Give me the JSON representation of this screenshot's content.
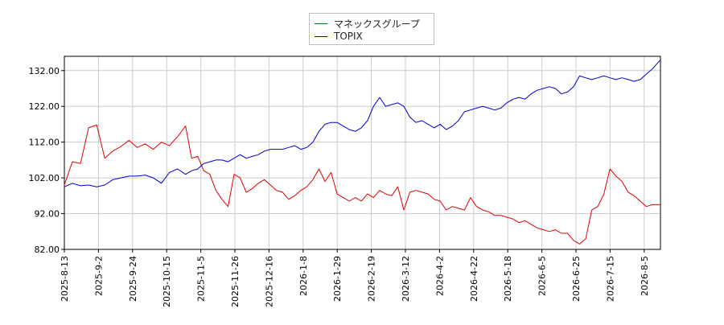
{
  "chart_data": {
    "type": "line",
    "title": "",
    "xlabel": "",
    "ylabel": "",
    "ylim": [
      82,
      136
    ],
    "y_ticks": [
      "82.00",
      "92.00",
      "102.00",
      "112.00",
      "122.00",
      "132.00"
    ],
    "x_tick_labels": [
      "2025-8-13",
      "2025-9-2",
      "2025-9-24",
      "2025-10-15",
      "2025-11-5",
      "2025-11-26",
      "2025-12-16",
      "2026-1-8",
      "2026-1-29",
      "2026-2-19",
      "2026-3-12",
      "2026-4-2",
      "2026-4-22",
      "2026-5-18",
      "2026-6-5",
      "2026-6-25",
      "2026-7-15",
      "2026-8-5"
    ],
    "grid": true,
    "legend_position": "top-center",
    "series": [
      {
        "name": "マネックスグループ",
        "color": "#dd0000",
        "points": [
          [
            0,
            100.0
          ],
          [
            4,
            106.5
          ],
          [
            8,
            106.0
          ],
          [
            12,
            116.0
          ],
          [
            16,
            116.8
          ],
          [
            20,
            107.5
          ],
          [
            24,
            109.5
          ],
          [
            28,
            110.8
          ],
          [
            32,
            112.5
          ],
          [
            36,
            110.5
          ],
          [
            40,
            111.5
          ],
          [
            44,
            110.0
          ],
          [
            48,
            112.0
          ],
          [
            52,
            111.0
          ],
          [
            56,
            113.5
          ],
          [
            60,
            116.5
          ],
          [
            63,
            107.5
          ],
          [
            66,
            108.0
          ],
          [
            69,
            104.0
          ],
          [
            72,
            103.0
          ],
          [
            75,
            98.5
          ],
          [
            78,
            96.0
          ],
          [
            81,
            94.0
          ],
          [
            84,
            103.0
          ],
          [
            87,
            102.0
          ],
          [
            90,
            98.0
          ],
          [
            93,
            99.0
          ],
          [
            96,
            100.5
          ],
          [
            99,
            101.5
          ],
          [
            102,
            100.0
          ],
          [
            105,
            98.5
          ],
          [
            108,
            98.0
          ],
          [
            111,
            96.0
          ],
          [
            114,
            97.0
          ],
          [
            117,
            98.5
          ],
          [
            120,
            99.5
          ],
          [
            123,
            101.5
          ],
          [
            126,
            104.5
          ],
          [
            129,
            101.0
          ],
          [
            132,
            103.5
          ],
          [
            135,
            97.5
          ],
          [
            138,
            96.5
          ],
          [
            141,
            95.5
          ],
          [
            144,
            96.5
          ],
          [
            147,
            95.5
          ],
          [
            150,
            97.5
          ],
          [
            153,
            96.5
          ],
          [
            156,
            98.5
          ],
          [
            159,
            97.5
          ],
          [
            162,
            97.0
          ],
          [
            165,
            99.5
          ],
          [
            168,
            93.0
          ],
          [
            171,
            98.0
          ],
          [
            174,
            98.5
          ],
          [
            177,
            98.0
          ],
          [
            180,
            97.5
          ],
          [
            183,
            96.0
          ],
          [
            186,
            95.5
          ],
          [
            189,
            93.0
          ],
          [
            192,
            94.0
          ],
          [
            195,
            93.5
          ],
          [
            198,
            93.0
          ],
          [
            201,
            96.5
          ],
          [
            204,
            94.0
          ],
          [
            207,
            93.0
          ],
          [
            210,
            92.5
          ],
          [
            213,
            91.5
          ],
          [
            216,
            91.5
          ],
          [
            219,
            91.0
          ],
          [
            222,
            90.5
          ],
          [
            225,
            89.5
          ],
          [
            228,
            90.0
          ],
          [
            231,
            89.0
          ],
          [
            234,
            88.0
          ],
          [
            237,
            87.5
          ],
          [
            240,
            87.0
          ],
          [
            243,
            87.5
          ],
          [
            246,
            86.5
          ],
          [
            249,
            86.5
          ],
          [
            252,
            84.5
          ],
          [
            255,
            83.5
          ],
          [
            258,
            85.0
          ],
          [
            261,
            93.0
          ],
          [
            264,
            94.0
          ],
          [
            267,
            97.5
          ],
          [
            270,
            104.5
          ],
          [
            273,
            102.5
          ],
          [
            276,
            101.0
          ],
          [
            279,
            98.0
          ],
          [
            282,
            97.0
          ],
          [
            285,
            95.5
          ],
          [
            288,
            94.0
          ],
          [
            291,
            94.5
          ],
          [
            295,
            94.5
          ]
        ]
      },
      {
        "name": "TOPIX",
        "color": "#0000cc",
        "points": [
          [
            0,
            99.5
          ],
          [
            4,
            100.5
          ],
          [
            8,
            99.8
          ],
          [
            12,
            100.0
          ],
          [
            16,
            99.5
          ],
          [
            20,
            100.0
          ],
          [
            24,
            101.5
          ],
          [
            28,
            102.0
          ],
          [
            32,
            102.5
          ],
          [
            36,
            102.5
          ],
          [
            40,
            102.8
          ],
          [
            44,
            102.0
          ],
          [
            48,
            100.5
          ],
          [
            52,
            103.5
          ],
          [
            56,
            104.5
          ],
          [
            60,
            103.0
          ],
          [
            63,
            104.0
          ],
          [
            66,
            104.5
          ],
          [
            69,
            106.0
          ],
          [
            72,
            106.5
          ],
          [
            75,
            107.0
          ],
          [
            78,
            107.0
          ],
          [
            81,
            106.5
          ],
          [
            84,
            107.5
          ],
          [
            87,
            108.5
          ],
          [
            90,
            107.5
          ],
          [
            93,
            108.0
          ],
          [
            96,
            108.5
          ],
          [
            99,
            109.5
          ],
          [
            102,
            110.0
          ],
          [
            105,
            110.0
          ],
          [
            108,
            110.0
          ],
          [
            111,
            110.5
          ],
          [
            114,
            111.0
          ],
          [
            117,
            110.0
          ],
          [
            120,
            110.5
          ],
          [
            123,
            112.0
          ],
          [
            126,
            115.0
          ],
          [
            129,
            117.0
          ],
          [
            132,
            117.5
          ],
          [
            135,
            117.5
          ],
          [
            138,
            116.5
          ],
          [
            141,
            115.5
          ],
          [
            144,
            115.0
          ],
          [
            147,
            116.0
          ],
          [
            150,
            118.0
          ],
          [
            153,
            122.0
          ],
          [
            156,
            124.5
          ],
          [
            159,
            122.0
          ],
          [
            162,
            122.5
          ],
          [
            165,
            123.0
          ],
          [
            168,
            122.0
          ],
          [
            171,
            119.0
          ],
          [
            174,
            117.5
          ],
          [
            177,
            118.0
          ],
          [
            180,
            117.0
          ],
          [
            183,
            116.0
          ],
          [
            186,
            117.0
          ],
          [
            189,
            115.5
          ],
          [
            192,
            116.5
          ],
          [
            195,
            118.0
          ],
          [
            198,
            120.5
          ],
          [
            201,
            121.0
          ],
          [
            204,
            121.5
          ],
          [
            207,
            122.0
          ],
          [
            210,
            121.5
          ],
          [
            213,
            121.0
          ],
          [
            216,
            121.5
          ],
          [
            219,
            123.0
          ],
          [
            222,
            124.0
          ],
          [
            225,
            124.5
          ],
          [
            228,
            124.0
          ],
          [
            231,
            125.5
          ],
          [
            234,
            126.5
          ],
          [
            237,
            127.0
          ],
          [
            240,
            127.5
          ],
          [
            243,
            127.0
          ],
          [
            246,
            125.5
          ],
          [
            249,
            126.0
          ],
          [
            252,
            127.5
          ],
          [
            255,
            130.5
          ],
          [
            258,
            130.0
          ],
          [
            261,
            129.5
          ],
          [
            264,
            130.0
          ],
          [
            267,
            130.5
          ],
          [
            270,
            130.0
          ],
          [
            273,
            129.5
          ],
          [
            276,
            130.0
          ],
          [
            279,
            129.5
          ],
          [
            282,
            129.0
          ],
          [
            285,
            129.5
          ],
          [
            288,
            131.0
          ],
          [
            291,
            132.5
          ],
          [
            295,
            135.0
          ]
        ]
      }
    ]
  }
}
